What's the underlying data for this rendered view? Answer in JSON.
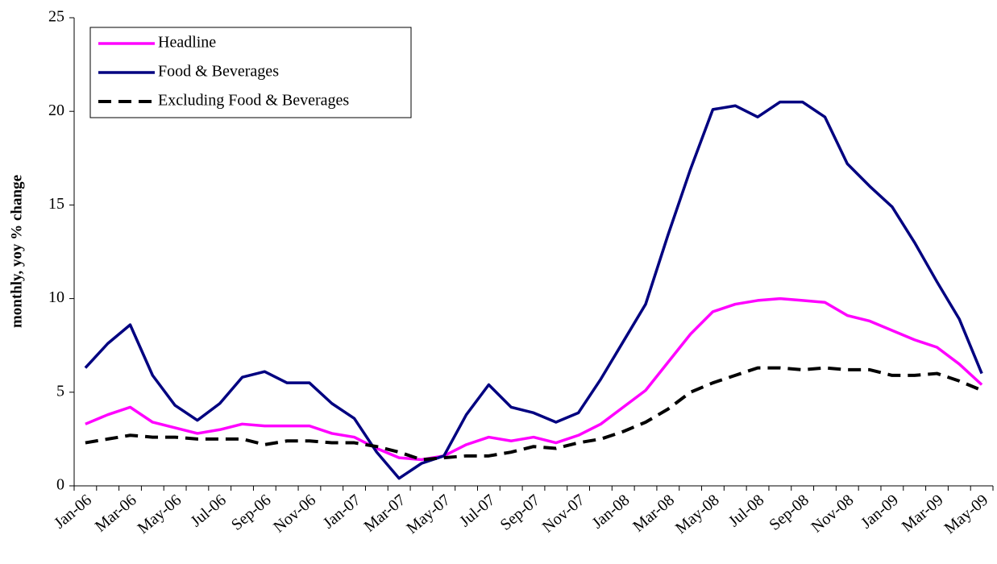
{
  "chart_data": {
    "type": "line",
    "y_label": "monthly, yoy % change",
    "categories": [
      "Jan-06",
      null,
      "Mar-06",
      null,
      "May-06",
      null,
      "Jul-06",
      null,
      "Sep-06",
      null,
      "Nov-06",
      null,
      "Jan-07",
      null,
      "Mar-07",
      null,
      "May-07",
      null,
      "Jul-07",
      null,
      "Sep-07",
      null,
      "Nov-07",
      null,
      "Jan-08",
      null,
      "Mar-08",
      null,
      "May-08",
      null,
      "Jul-08",
      null,
      "Sep-08",
      null,
      "Nov-08",
      null,
      "Jan-09",
      null,
      "Mar-09",
      null,
      "May-09"
    ],
    "series": [
      {
        "name": "Headline",
        "color": "#ff00ff",
        "dash": false,
        "values": [
          3.3,
          3.8,
          4.2,
          3.4,
          3.1,
          2.8,
          3.0,
          3.3,
          3.2,
          3.2,
          3.2,
          2.8,
          2.6,
          2.0,
          1.5,
          1.4,
          1.6,
          2.2,
          2.6,
          2.4,
          2.6,
          2.3,
          2.7,
          3.3,
          4.2,
          5.1,
          6.6,
          8.1,
          9.3,
          9.7,
          9.9,
          10.0,
          9.9,
          9.8,
          9.1,
          8.8,
          8.3,
          7.8,
          7.4,
          6.5,
          5.4
        ]
      },
      {
        "name": "Food & Beverages",
        "color": "#000080",
        "dash": false,
        "values": [
          6.3,
          7.6,
          8.6,
          5.9,
          4.3,
          3.5,
          4.4,
          5.8,
          6.1,
          5.5,
          5.5,
          4.4,
          3.6,
          1.8,
          0.4,
          1.2,
          1.6,
          3.8,
          5.4,
          4.2,
          3.9,
          3.4,
          3.9,
          5.7,
          7.7,
          9.7,
          13.4,
          16.9,
          20.1,
          20.3,
          19.7,
          20.5,
          20.5,
          19.7,
          17.2,
          16.0,
          14.9,
          13.0,
          10.9,
          8.9,
          6.0
        ]
      },
      {
        "name": "Excluding Food & Beverages",
        "color": "#000000",
        "dash": true,
        "values": [
          2.3,
          2.5,
          2.7,
          2.6,
          2.6,
          2.5,
          2.5,
          2.5,
          2.2,
          2.4,
          2.4,
          2.3,
          2.3,
          2.1,
          1.8,
          1.4,
          1.5,
          1.6,
          1.6,
          1.8,
          2.1,
          2.0,
          2.3,
          2.5,
          2.9,
          3.4,
          4.1,
          5.0,
          5.5,
          5.9,
          6.3,
          6.3,
          6.2,
          6.3,
          6.2,
          6.2,
          5.9,
          5.9,
          6.0,
          5.6,
          5.1
        ]
      }
    ],
    "ylim": [
      0,
      25
    ],
    "yticks": [
      0,
      5,
      10,
      15,
      20,
      25
    ],
    "grid": false,
    "legend": "top-left"
  }
}
